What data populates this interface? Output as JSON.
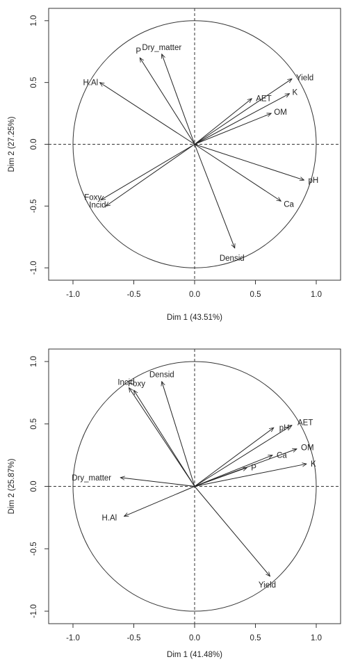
{
  "chart_data": [
    {
      "type": "scatter",
      "subtype": "pca-variables-factor-map",
      "title": "",
      "xlabel": "Dim 1 (43.51%)",
      "ylabel": "Dim 2 (27.25%)",
      "xlim": [
        -1.2,
        1.2
      ],
      "ylim": [
        -1.1,
        1.1
      ],
      "xticks": [
        "-1.0",
        "-0.5",
        "0.0",
        "0.5",
        "1.0"
      ],
      "yticks": [
        "-1.0",
        "-0.5",
        "0.0",
        "0.5",
        "1.0"
      ],
      "x_tick_values": [
        -1.0,
        -0.5,
        0.0,
        0.5,
        1.0
      ],
      "y_tick_values": [
        -1.0,
        -0.5,
        0.0,
        0.5,
        1.0
      ],
      "unit_circle": true,
      "grid": false,
      "variables": [
        {
          "name": "P",
          "x": -0.45,
          "y": 0.7
        },
        {
          "name": "Dry_matter",
          "x": -0.27,
          "y": 0.73
        },
        {
          "name": "H.Al",
          "x": -0.78,
          "y": 0.5
        },
        {
          "name": "Yield",
          "x": 0.8,
          "y": 0.53
        },
        {
          "name": "AET",
          "x": 0.47,
          "y": 0.37
        },
        {
          "name": "K",
          "x": 0.78,
          "y": 0.41
        },
        {
          "name": "OM",
          "x": 0.63,
          "y": 0.25
        },
        {
          "name": "pH",
          "x": 0.9,
          "y": -0.29
        },
        {
          "name": "Ca",
          "x": 0.71,
          "y": -0.46
        },
        {
          "name": "Densid",
          "x": 0.33,
          "y": -0.84
        },
        {
          "name": "Foxy",
          "x": -0.77,
          "y": -0.45
        },
        {
          "name": "Incid",
          "x": -0.73,
          "y": -0.5
        }
      ]
    },
    {
      "type": "scatter",
      "subtype": "pca-variables-factor-map",
      "title": "",
      "xlabel": "Dim 1 (41.48%)",
      "ylabel": "Dim 2 (25.87%)",
      "xlim": [
        -1.2,
        1.2
      ],
      "ylim": [
        -1.1,
        1.1
      ],
      "xticks": [
        "-1.0",
        "-0.5",
        "0.0",
        "0.5",
        "1.0"
      ],
      "yticks": [
        "-1.0",
        "-0.5",
        "0.0",
        "0.5",
        "1.0"
      ],
      "x_tick_values": [
        -1.0,
        -0.5,
        0.0,
        0.5,
        1.0
      ],
      "y_tick_values": [
        -1.0,
        -0.5,
        0.0,
        0.5,
        1.0
      ],
      "unit_circle": true,
      "grid": false,
      "variables": [
        {
          "name": "Incid",
          "x": -0.54,
          "y": 0.79
        },
        {
          "name": "Foxy",
          "x": -0.5,
          "y": 0.77
        },
        {
          "name": "Densid",
          "x": -0.27,
          "y": 0.84
        },
        {
          "name": "pH",
          "x": 0.65,
          "y": 0.47
        },
        {
          "name": "AET",
          "x": 0.8,
          "y": 0.49
        },
        {
          "name": "Ca",
          "x": 0.64,
          "y": 0.25
        },
        {
          "name": "OM",
          "x": 0.84,
          "y": 0.3
        },
        {
          "name": "P",
          "x": 0.43,
          "y": 0.15
        },
        {
          "name": "K",
          "x": 0.92,
          "y": 0.18
        },
        {
          "name": "Dry_matter",
          "x": -0.61,
          "y": 0.07
        },
        {
          "name": "H.Al",
          "x": -0.58,
          "y": -0.24
        },
        {
          "name": "Yield",
          "x": 0.62,
          "y": -0.72
        }
      ]
    }
  ]
}
